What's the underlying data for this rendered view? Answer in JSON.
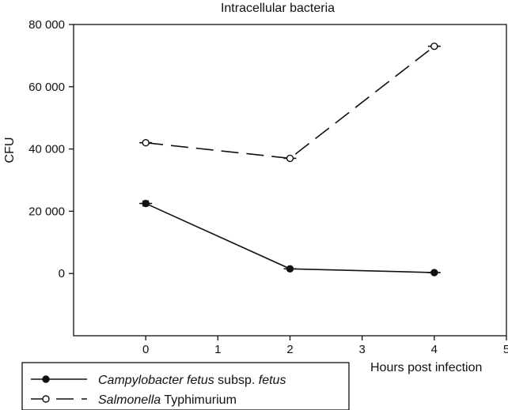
{
  "chart_data": {
    "type": "line",
    "title": "Intracellular bacteria",
    "xlabel": "Hours post infection",
    "ylabel": "CFU",
    "xlim": [
      -1,
      5
    ],
    "ylim": [
      -20000,
      80000
    ],
    "xticks": [
      0,
      1,
      2,
      3,
      4,
      5
    ],
    "xtick_labels": [
      "0",
      "1",
      "2",
      "3",
      "4",
      "5"
    ],
    "yticks": [
      0,
      20000,
      40000,
      60000,
      80000
    ],
    "ytick_labels": [
      "0",
      "20 000",
      "40 000",
      "60 000",
      "80 000"
    ],
    "grid": false,
    "legend_placement": "bottom-left",
    "series": [
      {
        "name_parts": [
          {
            "text": "Campylobacter fetus",
            "italic": true
          },
          {
            "text": " subsp. ",
            "italic": false
          },
          {
            "text": "fetus",
            "italic": true
          }
        ],
        "x": [
          0,
          2,
          4
        ],
        "values": [
          22500,
          1500,
          300
        ],
        "error": [
          800,
          0,
          0
        ],
        "line_style": "solid",
        "marker": "filled-circle",
        "color": "#111111"
      },
      {
        "name_parts": [
          {
            "text": "Salmonella",
            "italic": true
          },
          {
            "text": " Typhimurium",
            "italic": false
          }
        ],
        "x": [
          0,
          2,
          4
        ],
        "values": [
          42000,
          37000,
          73000
        ],
        "error": [
          0,
          0,
          0
        ],
        "line_style": "dashed",
        "marker": "open-circle",
        "color": "#111111"
      }
    ]
  }
}
